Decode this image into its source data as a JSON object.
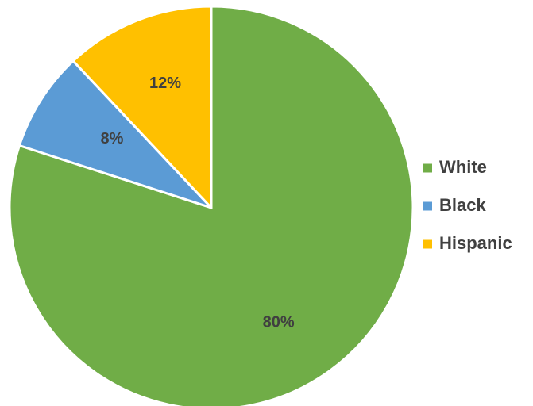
{
  "chart_data": {
    "type": "pie",
    "title": "",
    "categories": [
      "White",
      "Black",
      "Hispanic"
    ],
    "values": [
      80,
      8,
      12
    ],
    "value_labels": [
      "80%",
      "8%",
      "12%"
    ],
    "colors": [
      "#70ad47",
      "#5b9bd5",
      "#ffc000"
    ],
    "legend_position": "right",
    "start_angle_deg": 0,
    "direction": "clockwise",
    "title_color": "#1f6fc5"
  }
}
